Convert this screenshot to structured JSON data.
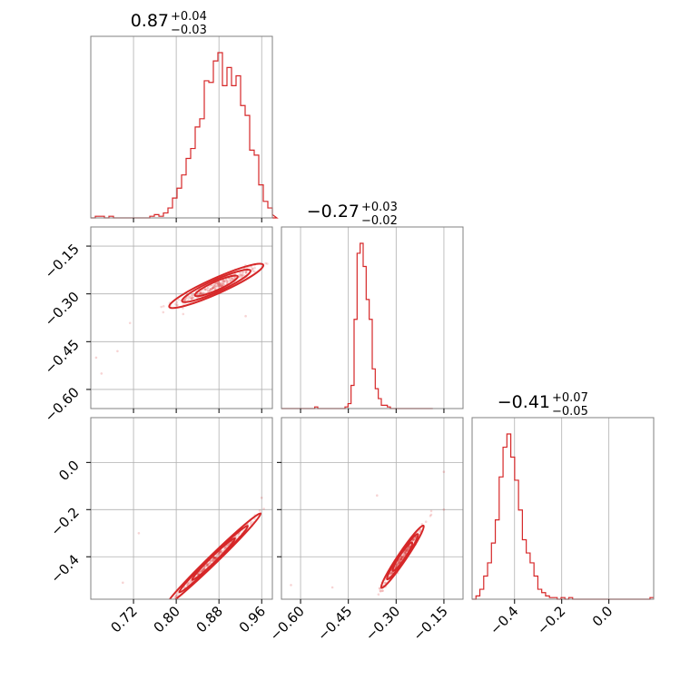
{
  "chart_data": {
    "type": "corner",
    "color": "#d62728",
    "params": [
      {
        "id": "p0",
        "title": {
          "median": "0.87",
          "upper": "+0.04",
          "lower": "−0.03"
        },
        "range": [
          0.64,
          0.98
        ],
        "ticks": [
          0.72,
          0.8,
          0.88,
          0.96
        ],
        "tick_labels": [
          "0.72",
          "0.80",
          "0.88",
          "0.96"
        ]
      },
      {
        "id": "p1",
        "title": {
          "median": "−0.27",
          "upper": "+0.03",
          "lower": "−0.02"
        },
        "range": [
          -0.66,
          -0.09
        ],
        "ticks": [
          -0.6,
          -0.45,
          -0.3,
          -0.15
        ],
        "tick_labels": [
          "−0.60",
          "−0.45",
          "−0.30",
          "−0.15"
        ]
      },
      {
        "id": "p2",
        "title": {
          "median": "−0.41",
          "upper": "+0.07",
          "lower": "−0.05"
        },
        "range": [
          -0.58,
          0.19
        ],
        "ticks": [
          -0.4,
          -0.2,
          0.0
        ],
        "tick_labels": [
          "−0.4",
          "−0.2",
          "0.0"
        ]
      }
    ],
    "histograms": [
      {
        "param": "p0",
        "bin_start": 0.64,
        "bin_width": 0.0085,
        "counts": [
          0,
          0.01,
          0.01,
          0,
          0.01,
          0,
          0,
          0,
          0,
          0,
          0,
          0,
          0,
          0.01,
          0.02,
          0.01,
          0.03,
          0.06,
          0.12,
          0.18,
          0.26,
          0.36,
          0.42,
          0.55,
          0.6,
          0.83,
          0.82,
          0.95,
          1.0,
          0.8,
          0.91,
          0.8,
          0.86,
          0.68,
          0.62,
          0.41,
          0.38,
          0.2,
          0.1,
          0.06,
          0.02,
          0.0
        ]
      },
      {
        "param": "p1",
        "bin_start": -0.66,
        "bin_width": 0.0095,
        "counts": [
          0,
          0,
          0,
          0,
          0,
          0,
          0,
          0,
          0,
          0,
          0,
          0.01,
          0,
          0,
          0,
          0,
          0,
          0,
          0,
          0,
          0,
          0.01,
          0.03,
          0.14,
          0.54,
          0.94,
          1.0,
          0.86,
          0.66,
          0.54,
          0.24,
          0.12,
          0.06,
          0.02,
          0.02,
          0.01,
          0,
          0,
          0,
          0,
          0,
          0,
          0,
          0,
          0,
          0,
          0,
          0,
          0,
          0
        ]
      },
      {
        "param": "p2",
        "bin_start": -0.58,
        "bin_width": 0.0164,
        "counts": [
          0,
          0.02,
          0.06,
          0.14,
          0.22,
          0.34,
          0.48,
          0.74,
          0.92,
          1.0,
          0.86,
          0.72,
          0.54,
          0.36,
          0.28,
          0.22,
          0.14,
          0.06,
          0.04,
          0.02,
          0.01,
          0.01,
          0,
          0.01,
          0,
          0.01,
          0,
          0,
          0,
          0,
          0,
          0,
          0,
          0,
          0,
          0,
          0,
          0,
          0,
          0,
          0,
          0,
          0,
          0,
          0,
          0,
          0.01
        ]
      }
    ],
    "scatter": [
      {
        "x_param": "p0",
        "y_param": "p1",
        "center": [
          0.875,
          -0.275
        ],
        "slope": 0.75,
        "major_sd": 0.04,
        "minor_sd": 0.01,
        "outliers": [
          [
            0.65,
            -0.5
          ],
          [
            0.66,
            -0.55
          ],
          [
            0.69,
            -0.48
          ],
          [
            0.93,
            -0.37
          ]
        ]
      },
      {
        "x_param": "p0",
        "y_param": "p2",
        "center": [
          0.87,
          -0.41
        ],
        "slope": 2.2,
        "major_sd": 0.04,
        "minor_sd": 0.008,
        "outliers": [
          [
            0.7,
            -0.51
          ],
          [
            0.73,
            -0.3
          ],
          [
            0.96,
            -0.15
          ]
        ]
      },
      {
        "x_param": "p1",
        "y_param": "p2",
        "center": [
          -0.28,
          -0.4
        ],
        "slope": 2.0,
        "major_sd": 0.03,
        "minor_sd": 0.01,
        "outliers": [
          [
            -0.5,
            -0.53
          ],
          [
            -0.36,
            -0.14
          ],
          [
            -0.15,
            -0.04
          ],
          [
            -0.15,
            -0.2
          ],
          [
            -0.63,
            -0.52
          ]
        ]
      }
    ]
  }
}
